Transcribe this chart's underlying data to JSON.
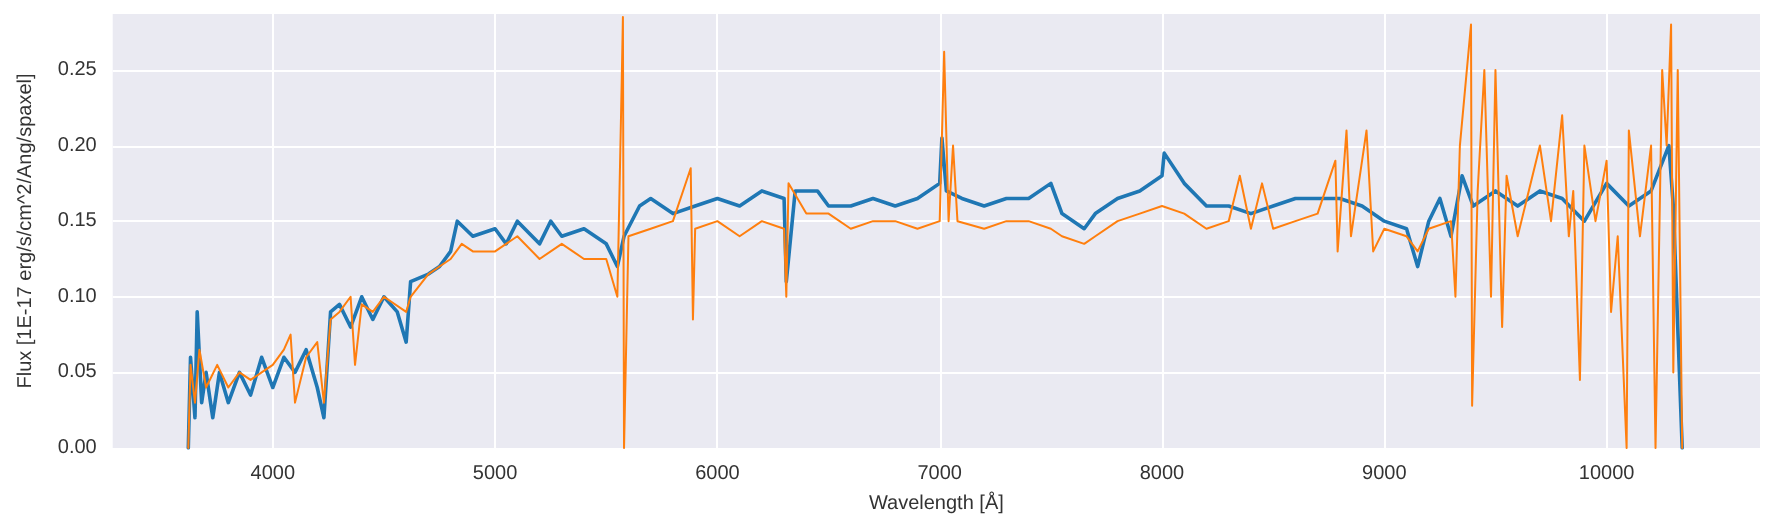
{
  "chart_data": {
    "type": "line",
    "xlabel": "Wavelength [Å]",
    "ylabel": "Flux [1E-17 erg/s/cm^2/Ang/spaxel]",
    "xlim": [
      3280,
      10690
    ],
    "xticks": [
      4000,
      5000,
      6000,
      7000,
      8000,
      9000,
      10000
    ],
    "ylim": [
      0,
      0.287
    ],
    "yticks": [
      {
        "value": 0,
        "label": "0.00"
      },
      {
        "value": 0.05,
        "label": "0.05"
      },
      {
        "value": 0.1,
        "label": "0.10"
      },
      {
        "value": 0.15,
        "label": "0.15"
      },
      {
        "value": 0.2,
        "label": "0.20"
      },
      {
        "value": 0.25,
        "label": "0.25"
      }
    ],
    "grid": true,
    "marker": "none",
    "line_style": "solid",
    "series": [
      {
        "color": "#1f77b4",
        "x": [
          3620,
          3630,
          3650,
          3660,
          3680,
          3700,
          3730,
          3760,
          3800,
          3850,
          3900,
          3950,
          4000,
          4050,
          4100,
          4150,
          4200,
          4230,
          4260,
          4300,
          4350,
          4400,
          4450,
          4500,
          4560,
          4600,
          4620,
          4700,
          4750,
          4800,
          4830,
          4900,
          5000,
          5050,
          5100,
          5200,
          5250,
          5300,
          5400,
          5500,
          5550,
          5580,
          5650,
          5700,
          5800,
          5900,
          6000,
          6100,
          6200,
          6300,
          6310,
          6350,
          6450,
          6500,
          6600,
          6700,
          6800,
          6900,
          7000,
          7010,
          7030,
          7100,
          7200,
          7300,
          7400,
          7500,
          7550,
          7650,
          7700,
          7800,
          7900,
          8000,
          8010,
          8100,
          8200,
          8300,
          8400,
          8500,
          8600,
          8700,
          8800,
          8900,
          9000,
          9100,
          9150,
          9200,
          9250,
          9300,
          9350,
          9400,
          9500,
          9600,
          9700,
          9800,
          9900,
          10000,
          10100,
          10200,
          10280,
          10300,
          10340
        ],
        "values": [
          0.0,
          0.06,
          0.02,
          0.09,
          0.03,
          0.05,
          0.02,
          0.05,
          0.03,
          0.05,
          0.035,
          0.06,
          0.04,
          0.06,
          0.05,
          0.065,
          0.04,
          0.02,
          0.09,
          0.095,
          0.08,
          0.1,
          0.085,
          0.1,
          0.09,
          0.07,
          0.11,
          0.115,
          0.12,
          0.13,
          0.15,
          0.14,
          0.145,
          0.135,
          0.15,
          0.135,
          0.15,
          0.14,
          0.145,
          0.135,
          0.12,
          0.14,
          0.16,
          0.165,
          0.155,
          0.16,
          0.165,
          0.16,
          0.17,
          0.165,
          0.11,
          0.17,
          0.17,
          0.16,
          0.16,
          0.165,
          0.16,
          0.165,
          0.175,
          0.205,
          0.17,
          0.165,
          0.16,
          0.165,
          0.165,
          0.175,
          0.155,
          0.145,
          0.155,
          0.165,
          0.17,
          0.18,
          0.195,
          0.175,
          0.16,
          0.16,
          0.155,
          0.16,
          0.165,
          0.165,
          0.165,
          0.16,
          0.15,
          0.145,
          0.12,
          0.15,
          0.165,
          0.14,
          0.18,
          0.16,
          0.17,
          0.16,
          0.17,
          0.165,
          0.15,
          0.175,
          0.16,
          0.17,
          0.2,
          0.16,
          0.0
        ]
      },
      {
        "color": "#ff7f0e",
        "x": [
          3620,
          3630,
          3650,
          3670,
          3700,
          3750,
          3800,
          3850,
          3900,
          3950,
          4000,
          4050,
          4080,
          4100,
          4150,
          4200,
          4230,
          4260,
          4300,
          4350,
          4370,
          4400,
          4450,
          4500,
          4600,
          4620,
          4700,
          4750,
          4800,
          4850,
          4900,
          5000,
          5100,
          5200,
          5300,
          5400,
          5500,
          5550,
          5570,
          5575,
          5580,
          5600,
          5700,
          5800,
          5880,
          5890,
          5900,
          6000,
          6100,
          6200,
          6300,
          6310,
          6320,
          6400,
          6500,
          6600,
          6700,
          6800,
          6900,
          7000,
          7020,
          7040,
          7060,
          7080,
          7200,
          7300,
          7400,
          7500,
          7550,
          7650,
          7700,
          7800,
          7900,
          8000,
          8100,
          8200,
          8300,
          8350,
          8400,
          8450,
          8500,
          8600,
          8700,
          8780,
          8790,
          8830,
          8850,
          8920,
          8950,
          9000,
          9100,
          9150,
          9200,
          9300,
          9320,
          9340,
          9390,
          9395,
          9420,
          9450,
          9480,
          9500,
          9530,
          9550,
          9600,
          9700,
          9750,
          9800,
          9830,
          9850,
          9880,
          9900,
          9950,
          10000,
          10020,
          10050,
          10090,
          10100,
          10150,
          10200,
          10220,
          10250,
          10270,
          10290,
          10300,
          10320,
          10340
        ],
        "values": [
          0.0,
          0.055,
          0.03,
          0.065,
          0.04,
          0.055,
          0.04,
          0.05,
          0.045,
          0.05,
          0.055,
          0.065,
          0.075,
          0.03,
          0.06,
          0.07,
          0.03,
          0.085,
          0.09,
          0.1,
          0.055,
          0.095,
          0.09,
          0.1,
          0.09,
          0.1,
          0.115,
          0.12,
          0.125,
          0.135,
          0.13,
          0.13,
          0.14,
          0.125,
          0.135,
          0.125,
          0.125,
          0.1,
          0.245,
          0.285,
          0.0,
          0.14,
          0.145,
          0.15,
          0.185,
          0.085,
          0.145,
          0.15,
          0.14,
          0.15,
          0.145,
          0.1,
          0.175,
          0.155,
          0.155,
          0.145,
          0.15,
          0.15,
          0.145,
          0.15,
          0.262,
          0.15,
          0.2,
          0.15,
          0.145,
          0.15,
          0.15,
          0.145,
          0.14,
          0.135,
          0.14,
          0.15,
          0.155,
          0.16,
          0.155,
          0.145,
          0.15,
          0.18,
          0.145,
          0.175,
          0.145,
          0.15,
          0.155,
          0.19,
          0.13,
          0.21,
          0.14,
          0.21,
          0.13,
          0.145,
          0.14,
          0.13,
          0.145,
          0.15,
          0.1,
          0.2,
          0.28,
          0.028,
          0.17,
          0.25,
          0.1,
          0.25,
          0.08,
          0.18,
          0.14,
          0.2,
          0.15,
          0.22,
          0.14,
          0.17,
          0.045,
          0.2,
          0.15,
          0.19,
          0.09,
          0.14,
          0.0,
          0.21,
          0.14,
          0.2,
          0.0,
          0.25,
          0.2,
          0.28,
          0.05,
          0.25,
          0.0
        ]
      }
    ]
  }
}
